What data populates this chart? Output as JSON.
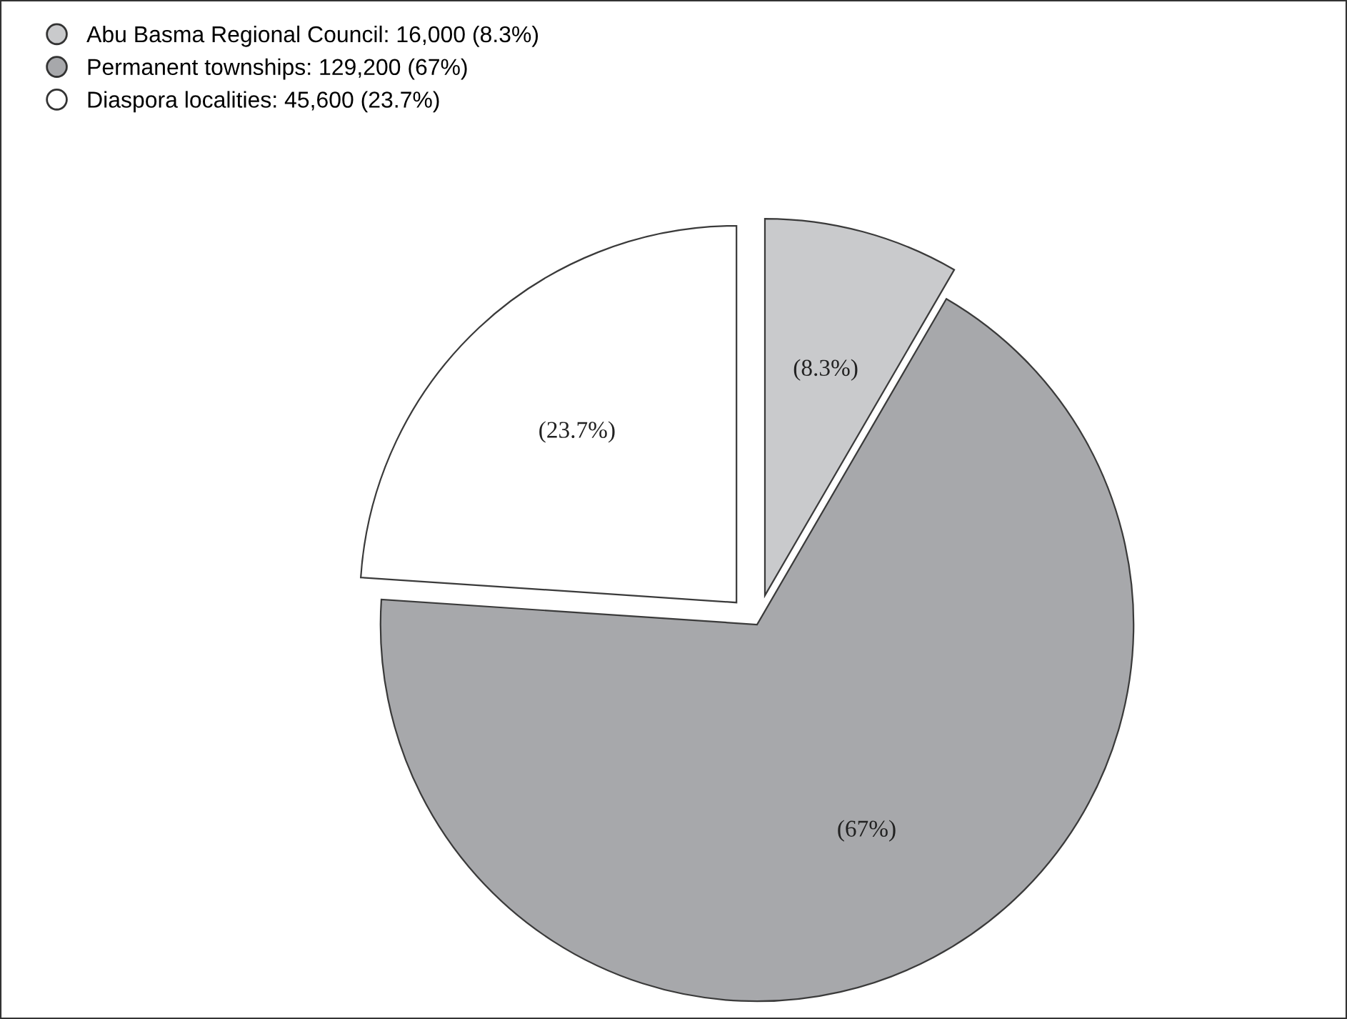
{
  "chart_data": {
    "type": "pie",
    "categories": [
      "Abu Basma Regional Council: 16,000 (8.3%)",
      "Permanent townships: 129,200 (67%)",
      "Diaspora localities: 45,600 (23.7%)"
    ],
    "values": [
      8.3,
      67,
      23.7
    ],
    "value_labels": [
      "(8.3%)",
      "(67%)",
      "(23.7%)"
    ],
    "colors": [
      "#c9cacc",
      "#a7a8ab",
      "#ffffff"
    ],
    "legend": "top left"
  }
}
